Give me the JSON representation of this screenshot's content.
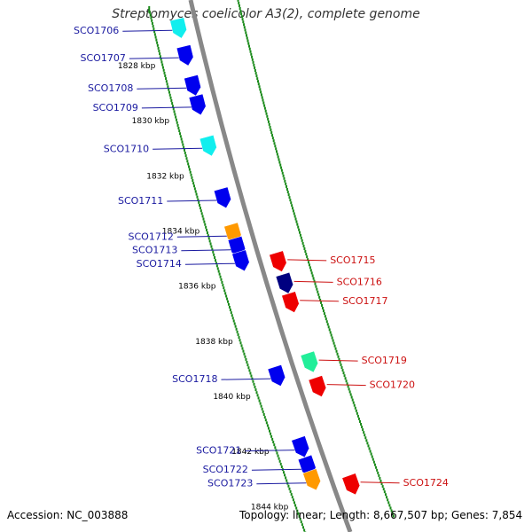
{
  "title": "Streptomyces coelicolor A3(2), complete genome",
  "footer": {
    "accession": "Accession: NC_003888",
    "summary": "Topology: linear; Length: 8,667,507 bp; Genes: 7,854"
  },
  "colors": {
    "backbone": "#888888",
    "ticks": "#1a8a1a",
    "label_left": "#1a1aa0",
    "label_right": "#cc1111",
    "gene_blue": "#0000ee",
    "gene_cyan": "#11eeee",
    "gene_orange": "#ff9900",
    "gene_red": "#ee0000",
    "gene_navy": "#000080",
    "gene_green": "#22ee99"
  },
  "scale": {
    "unit": "kbp",
    "labels": [
      {
        "name": "1828 kbp",
        "pos": 1828
      },
      {
        "name": "1830 kbp",
        "pos": 1830
      },
      {
        "name": "1832 kbp",
        "pos": 1832
      },
      {
        "name": "1834 kbp",
        "pos": 1834
      },
      {
        "name": "1836 kbp",
        "pos": 1836
      },
      {
        "name": "1838 kbp",
        "pos": 1838
      },
      {
        "name": "1840 kbp",
        "pos": 1840
      },
      {
        "name": "1842 kbp",
        "pos": 1842
      },
      {
        "name": "1844 kbp",
        "pos": 1844
      }
    ]
  },
  "genes_left": [
    {
      "name": "SCO1706",
      "pos": 1826.9,
      "color": "gene_cyan"
    },
    {
      "name": "SCO1707",
      "pos": 1827.9,
      "color": "gene_blue"
    },
    {
      "name": "SCO1708",
      "pos": 1829.0,
      "color": "gene_blue"
    },
    {
      "name": "SCO1709",
      "pos": 1829.7,
      "color": "gene_blue"
    },
    {
      "name": "SCO1710",
      "pos": 1831.2,
      "color": "gene_cyan"
    },
    {
      "name": "SCO1711",
      "pos": 1833.1,
      "color": "gene_blue"
    },
    {
      "name": "SCO1712",
      "pos": 1834.4,
      "color": "gene_orange"
    },
    {
      "name": "SCO1713",
      "pos": 1834.9,
      "color": "gene_blue"
    },
    {
      "name": "SCO1714",
      "pos": 1835.4,
      "color": "gene_blue"
    },
    {
      "name": "SCO1718",
      "pos": 1839.6,
      "color": "gene_blue"
    },
    {
      "name": "SCO1721",
      "pos": 1842.2,
      "color": "gene_blue"
    },
    {
      "name": "SCO1722",
      "pos": 1842.9,
      "color": "gene_blue"
    },
    {
      "name": "SCO1723",
      "pos": 1843.4,
      "color": "gene_orange"
    }
  ],
  "genes_right": [
    {
      "name": "SCO1715",
      "pos": 1835.8,
      "color": "gene_red"
    },
    {
      "name": "SCO1716",
      "pos": 1836.6,
      "color": "gene_navy"
    },
    {
      "name": "SCO1717",
      "pos": 1837.3,
      "color": "gene_red"
    },
    {
      "name": "SCO1719",
      "pos": 1839.5,
      "color": "gene_green"
    },
    {
      "name": "SCO1720",
      "pos": 1840.4,
      "color": "gene_red"
    },
    {
      "name": "SCO1724",
      "pos": 1844.0,
      "color": "gene_red"
    }
  ]
}
